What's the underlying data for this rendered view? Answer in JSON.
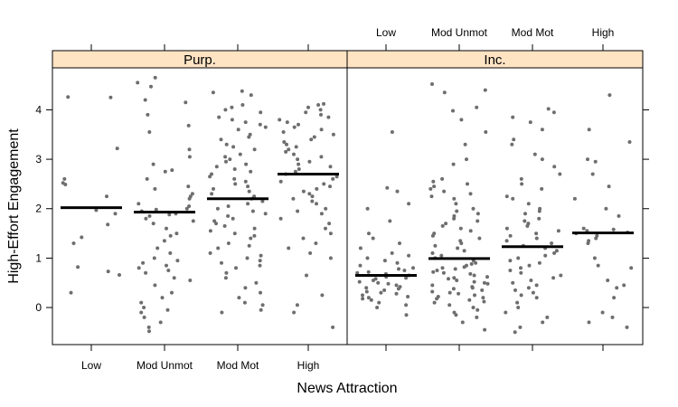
{
  "chart_data": {
    "type": "scatter",
    "xlabel": "News Attraction",
    "ylabel": "High-Effort Engagement",
    "categories": [
      "Low",
      "Mod Unmot",
      "Mod Mot",
      "High"
    ],
    "y_ticks": [
      0,
      1,
      2,
      3,
      4
    ],
    "ylim": [
      -0.75,
      4.85
    ],
    "grid": false,
    "colors": {
      "points": "#6e6e6e",
      "strip": "#ffe4c4",
      "mean_line": "#000000"
    },
    "panels": [
      {
        "name": "Purp.",
        "means": [
          2.02,
          1.93,
          2.2,
          2.7
        ],
        "points": [
          {
            "category": "Low",
            "y": [
              4.26,
              4.25,
              3.22,
              2.6,
              2.52,
              2.49,
              2.25,
              1.97,
              1.9,
              1.68,
              1.42,
              1.3,
              0.82,
              0.73,
              0.66,
              0.3
            ]
          },
          {
            "category": "Mod Unmot",
            "y": [
              4.65,
              4.55,
              4.47,
              4.2,
              4.15,
              3.9,
              3.68,
              3.55,
              3.2,
              3.05,
              2.9,
              2.78,
              2.75,
              2.6,
              2.45,
              2.4,
              2.3,
              2.25,
              2.2,
              2.1,
              2.05,
              2.0,
              1.98,
              1.95,
              1.9,
              1.88,
              1.85,
              1.8,
              1.75,
              1.7,
              1.6,
              1.5,
              1.45,
              1.35,
              1.2,
              1.1,
              1.0,
              0.95,
              0.9,
              0.85,
              0.8,
              0.75,
              0.7,
              0.6,
              0.55,
              0.45,
              0.3,
              0.2,
              0.1,
              0.0,
              -0.05,
              -0.1,
              -0.2,
              -0.3,
              -0.4,
              -0.48
            ]
          },
          {
            "category": "Mod Mot",
            "y": [
              4.38,
              4.35,
              4.3,
              4.1,
              4.05,
              4.0,
              3.95,
              3.85,
              3.8,
              3.75,
              3.7,
              3.65,
              3.6,
              3.5,
              3.45,
              3.4,
              3.3,
              3.25,
              3.2,
              3.1,
              3.05,
              3.0,
              2.95,
              2.9,
              2.85,
              2.8,
              2.75,
              2.7,
              2.65,
              2.6,
              2.55,
              2.5,
              2.45,
              2.4,
              2.35,
              2.3,
              2.25,
              2.2,
              2.15,
              2.1,
              2.05,
              2.0,
              1.95,
              1.9,
              1.85,
              1.8,
              1.75,
              1.7,
              1.65,
              1.6,
              1.55,
              1.5,
              1.45,
              1.4,
              1.3,
              1.25,
              1.2,
              1.1,
              1.05,
              1.0,
              0.95,
              0.9,
              0.85,
              0.8,
              0.7,
              0.6,
              0.5,
              0.4,
              0.3,
              0.2,
              0.1,
              0.05,
              -0.05,
              -0.1
            ]
          },
          {
            "category": "High",
            "y": [
              4.12,
              4.1,
              4.05,
              4.0,
              3.95,
              3.9,
              3.85,
              3.8,
              3.75,
              3.7,
              3.65,
              3.6,
              3.55,
              3.5,
              3.45,
              3.4,
              3.35,
              3.3,
              3.25,
              3.2,
              3.15,
              3.1,
              3.05,
              3.0,
              2.95,
              2.9,
              2.85,
              2.8,
              2.75,
              2.7,
              2.65,
              2.6,
              2.55,
              2.5,
              2.45,
              2.4,
              2.35,
              2.3,
              2.25,
              2.2,
              2.15,
              2.1,
              2.0,
              1.95,
              1.9,
              1.8,
              1.7,
              1.6,
              1.5,
              1.4,
              1.3,
              1.2,
              1.1,
              1.0,
              0.65,
              0.25,
              0.05,
              -0.1,
              -0.4
            ]
          }
        ]
      },
      {
        "name": "Inc.",
        "means": [
          0.65,
          0.99,
          1.23,
          1.51
        ],
        "points": [
          {
            "category": "Low",
            "y": [
              3.55,
              2.42,
              2.35,
              2.1,
              2.0,
              1.75,
              1.5,
              1.4,
              1.3,
              1.2,
              1.1,
              1.05,
              1.0,
              0.95,
              0.9,
              0.85,
              0.8,
              0.78,
              0.75,
              0.72,
              0.7,
              0.68,
              0.65,
              0.62,
              0.6,
              0.58,
              0.55,
              0.52,
              0.5,
              0.48,
              0.45,
              0.42,
              0.4,
              0.38,
              0.35,
              0.32,
              0.3,
              0.28,
              0.25,
              0.22,
              0.2,
              0.18,
              0.15,
              0.1,
              0.05,
              0.0,
              -0.15
            ]
          },
          {
            "category": "Mod Unmot",
            "y": [
              4.52,
              4.4,
              4.35,
              4.05,
              3.98,
              3.8,
              3.55,
              3.3,
              3.0,
              2.9,
              2.6,
              2.55,
              2.5,
              2.45,
              2.4,
              2.35,
              2.3,
              2.25,
              2.2,
              2.1,
              2.0,
              1.95,
              1.9,
              1.85,
              1.8,
              1.75,
              1.7,
              1.65,
              1.6,
              1.55,
              1.5,
              1.45,
              1.4,
              1.35,
              1.3,
              1.25,
              1.2,
              1.15,
              1.1,
              1.05,
              1.0,
              0.95,
              0.9,
              0.88,
              0.85,
              0.82,
              0.8,
              0.78,
              0.75,
              0.72,
              0.7,
              0.68,
              0.65,
              0.62,
              0.6,
              0.58,
              0.55,
              0.52,
              0.5,
              0.48,
              0.45,
              0.42,
              0.4,
              0.38,
              0.35,
              0.32,
              0.3,
              0.28,
              0.25,
              0.22,
              0.2,
              0.18,
              0.15,
              0.12,
              0.1,
              0.05,
              0.0,
              -0.05,
              -0.1,
              -0.15,
              -0.2,
              -0.3,
              -0.45
            ]
          },
          {
            "category": "Mod Mot",
            "y": [
              4.02,
              3.95,
              3.85,
              3.75,
              3.6,
              3.4,
              3.3,
              3.1,
              3.0,
              2.85,
              2.7,
              2.6,
              2.5,
              2.4,
              2.25,
              2.2,
              2.1,
              2.0,
              1.95,
              1.9,
              1.8,
              1.75,
              1.7,
              1.65,
              1.6,
              1.55,
              1.5,
              1.45,
              1.4,
              1.35,
              1.3,
              1.25,
              1.2,
              1.15,
              1.1,
              1.05,
              1.0,
              0.95,
              0.9,
              0.85,
              0.8,
              0.75,
              0.7,
              0.65,
              0.6,
              0.55,
              0.5,
              0.45,
              0.4,
              0.35,
              0.3,
              0.25,
              0.2,
              0.1,
              0.0,
              -0.1,
              -0.2,
              -0.3,
              -0.4,
              -0.5
            ]
          },
          {
            "category": "High",
            "y": [
              4.3,
              3.6,
              3.35,
              3.0,
              2.95,
              2.7,
              2.45,
              2.2,
              2.0,
              1.85,
              1.6,
              1.58,
              1.55,
              1.52,
              1.5,
              1.45,
              1.4,
              1.35,
              1.3,
              1.0,
              0.85,
              0.8,
              0.55,
              0.45,
              0.4,
              0.2,
              -0.1,
              -0.2,
              -0.3,
              -0.4
            ]
          }
        ]
      }
    ]
  }
}
